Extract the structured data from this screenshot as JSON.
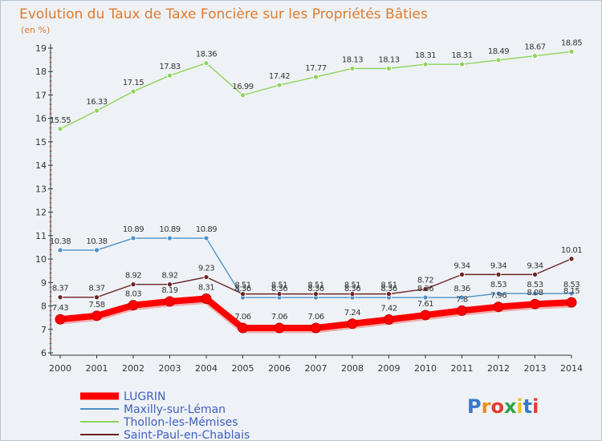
{
  "chart_data": {
    "type": "line",
    "title": "Evolution du Taux de Taxe Foncière sur les Propriétés Bâties",
    "subtitle": "(en %)",
    "xlabel": "",
    "ylabel": "",
    "x": [
      "2000",
      "2001",
      "2002",
      "2003",
      "2004",
      "2005",
      "2006",
      "2007",
      "2008",
      "2009",
      "2010",
      "2011",
      "2012",
      "2013",
      "2014"
    ],
    "ylim": [
      6,
      19
    ],
    "yticks": [
      "6",
      "7",
      "8",
      "9",
      "10",
      "11",
      "12",
      "13",
      "14",
      "15",
      "16",
      "17",
      "18",
      "19"
    ],
    "grid": false,
    "legend_position": "bottom-left",
    "series": [
      {
        "name": "LUGRIN",
        "color": "#ff0000",
        "values": [
          7.43,
          7.58,
          8.03,
          8.19,
          8.31,
          7.06,
          7.06,
          7.06,
          7.24,
          7.42,
          7.61,
          7.8,
          7.96,
          8.08,
          8.15
        ],
        "labels": [
          "7.43",
          "7.58",
          "8.03",
          "8.19",
          "8.31",
          "7.06",
          "7.06",
          "7.06",
          "7.24",
          "7.42",
          "7.61",
          "7.8",
          "7.96",
          "8.08",
          "8.15"
        ]
      },
      {
        "name": "Maxilly-sur-Léman",
        "color": "#4e8fc8",
        "values": [
          10.38,
          10.38,
          10.89,
          10.89,
          10.89,
          8.36,
          8.36,
          8.36,
          8.36,
          8.36,
          8.36,
          8.36,
          8.53,
          8.53,
          8.53
        ],
        "labels": [
          "10.38",
          "10.38",
          "10.89",
          "10.89",
          "10.89",
          "8.36",
          "8.36",
          "8.36",
          "8.36",
          "8.36",
          "8.36",
          "8.36",
          "8.53",
          "8.53",
          "8.53"
        ]
      },
      {
        "name": "Thollon-les-Mémises",
        "color": "#8fd45a",
        "values": [
          15.55,
          16.33,
          17.15,
          17.83,
          18.36,
          16.99,
          17.42,
          17.77,
          18.13,
          18.13,
          18.31,
          18.31,
          18.49,
          18.67,
          18.85
        ],
        "labels": [
          "15.55",
          "16.33",
          "17.15",
          "17.83",
          "18.36",
          "16.99",
          "17.42",
          "17.77",
          "18.13",
          "18.13",
          "18.31",
          "18.31",
          "18.49",
          "18.67",
          "18.85"
        ]
      },
      {
        "name": "Saint-Paul-en-Chablais",
        "color": "#6b2424",
        "values": [
          8.37,
          8.37,
          8.92,
          8.92,
          9.23,
          8.51,
          8.51,
          8.51,
          8.51,
          8.51,
          8.72,
          9.34,
          9.34,
          9.34,
          10.01
        ],
        "labels": [
          "8.37",
          "8.37",
          "8.92",
          "8.92",
          "9.23",
          "8.51",
          "8.51",
          "8.51",
          "8.51",
          "8.51",
          "8.72",
          "9.34",
          "9.34",
          "9.34",
          "10.01"
        ]
      }
    ]
  },
  "legend_text_color": "#4060c0",
  "logo": {
    "text": "Proxiti",
    "letters": [
      "P",
      "r",
      "o",
      "x",
      "i",
      "t",
      "i"
    ],
    "colors": [
      "#3a78c8",
      "#f08a1c",
      "#e63a2a",
      "#2ea04a",
      "#f0c020",
      "#3a78c8",
      "#e63a2a"
    ]
  },
  "colors": {
    "background": "#eef2f6",
    "title": "#e07a2c",
    "axis": "#333333"
  }
}
